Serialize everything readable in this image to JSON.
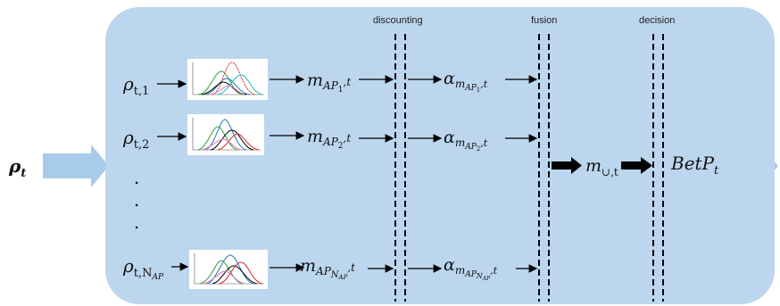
{
  "stages": {
    "discounting": "discounting",
    "fusion": "fusion",
    "decision": "decision"
  },
  "input": {
    "rho": "ρ",
    "sub": "t"
  },
  "rows": [
    {
      "rho_sub_main": "t,1",
      "m_sub": "AP",
      "m_sub2": "1",
      "alpha_sub": "AP",
      "alpha_sub2": "1"
    },
    {
      "rho_sub_main": "t,2",
      "m_sub": "AP",
      "m_sub2": "2",
      "alpha_sub": "AP",
      "alpha_sub2": "2"
    },
    {
      "rho_sub_main": "t,N",
      "rho_sub2": "AP",
      "m_sub": "AP",
      "m_sub2": "N",
      "m_sub3": "AP",
      "alpha_sub": "AP",
      "alpha_sub2": "N",
      "alpha_sub3": "AP"
    }
  ],
  "symbols": {
    "m": "m",
    "alpha": "α",
    "t": "t",
    "union_m": "m",
    "union_sub": "∪,t",
    "betp": "BetP",
    "betp_sub": "t"
  },
  "ellipsis": ".",
  "colors": {
    "panel": "#bcd6ee",
    "arrow_bg": "#a9cbea",
    "line": "#000000"
  }
}
